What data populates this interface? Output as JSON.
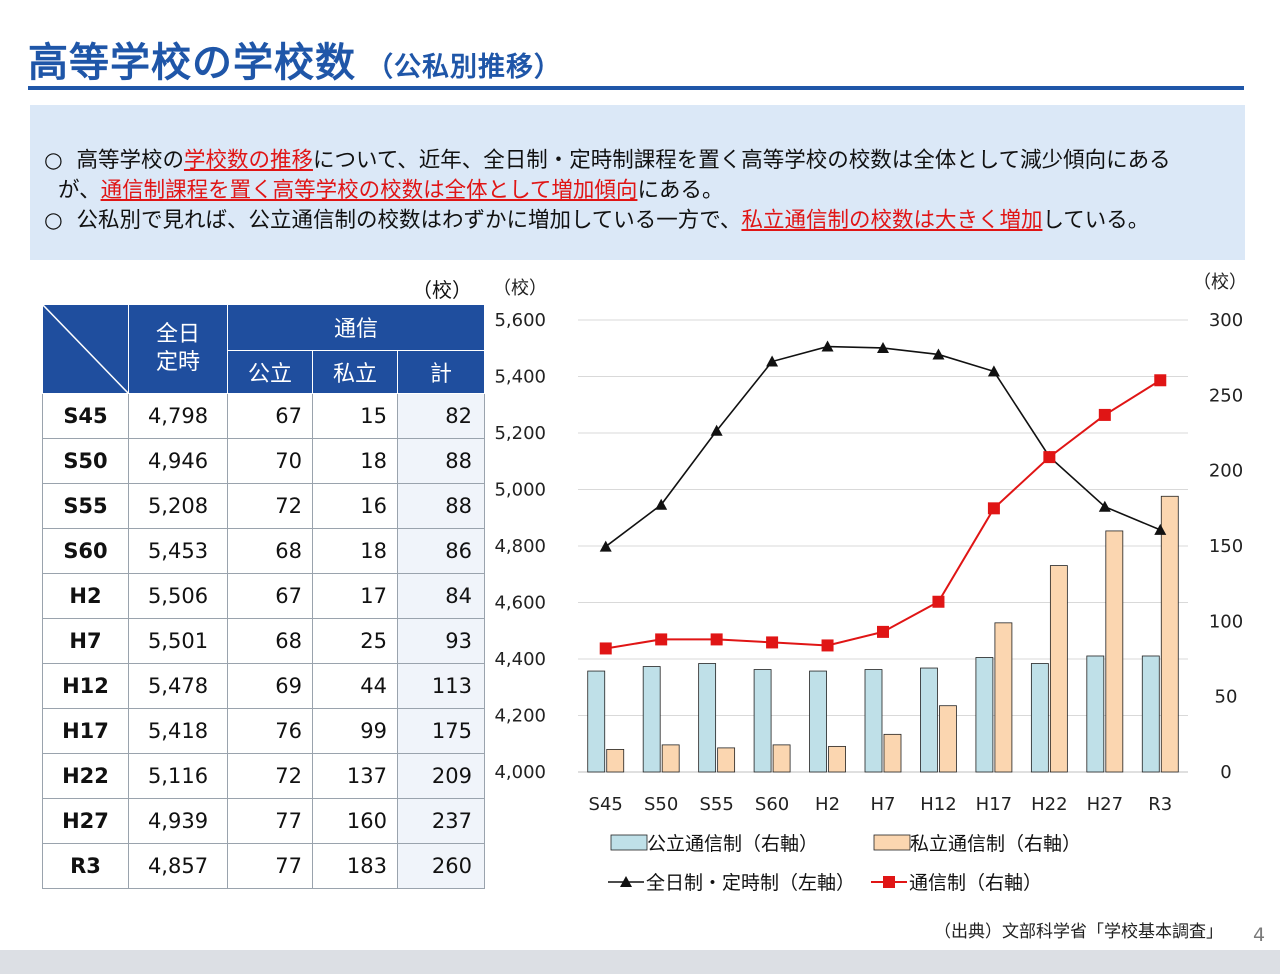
{
  "title": "高等学校の学校数",
  "title_sub": "（公私別推移）",
  "summary": {
    "bullet": "○",
    "l1_a": "高等学校の",
    "l1_red": "学校数の推移",
    "l1_b": "について、近年、全日制・定時制課程を置く高等学校の校数は全体として減少傾向にある",
    "l2_a": "が、",
    "l2_red": "通信制課程を置く高等学校の校数は全体として増加傾向",
    "l2_b": "にある。",
    "l3_a": "公私別で見れば、公立通信制の校数はわずかに増加している一方で、",
    "l3_red": "私立通信制の校数は大きく増加",
    "l3_b": "している。"
  },
  "table": {
    "unit": "（校）",
    "header_day_1": "全日",
    "header_day_2": "定時",
    "header_corr": "通信",
    "header_public": "公立",
    "header_private": "私立",
    "header_total": "計",
    "rows": [
      {
        "era": "S45",
        "day": "4,798",
        "pub": "67",
        "pri": "15",
        "tot": "82"
      },
      {
        "era": "S50",
        "day": "4,946",
        "pub": "70",
        "pri": "18",
        "tot": "88"
      },
      {
        "era": "S55",
        "day": "5,208",
        "pub": "72",
        "pri": "16",
        "tot": "88"
      },
      {
        "era": "S60",
        "day": "5,453",
        "pub": "68",
        "pri": "18",
        "tot": "86"
      },
      {
        "era": "H2",
        "day": "5,506",
        "pub": "67",
        "pri": "17",
        "tot": "84"
      },
      {
        "era": "H7",
        "day": "5,501",
        "pub": "68",
        "pri": "25",
        "tot": "93"
      },
      {
        "era": "H12",
        "day": "5,478",
        "pub": "69",
        "pri": "44",
        "tot": "113"
      },
      {
        "era": "H17",
        "day": "5,418",
        "pub": "76",
        "pri": "99",
        "tot": "175"
      },
      {
        "era": "H22",
        "day": "5,116",
        "pub": "72",
        "pri": "137",
        "tot": "209"
      },
      {
        "era": "H27",
        "day": "4,939",
        "pub": "77",
        "pri": "160",
        "tot": "237"
      },
      {
        "era": "R3",
        "day": "4,857",
        "pub": "77",
        "pri": "183",
        "tot": "260"
      }
    ],
    "highlight_color": "#e01515"
  },
  "source": "（出典）文部科学省「学校基本調査」",
  "page_number": "4",
  "colors": {
    "title": "#1f56a8",
    "table_header": "#1f4e9e",
    "summary_bg": "#dbe8f7",
    "public_bar": "#bfe0e8",
    "private_bar": "#fbd6b0",
    "correspondence_line": "#e01515",
    "fulltime_line": "#111111"
  },
  "chart_data": {
    "type": "bar",
    "categories": [
      "S45",
      "S50",
      "S55",
      "S60",
      "H2",
      "H7",
      "H12",
      "H17",
      "H22",
      "H27",
      "R3"
    ],
    "left_unit": "（校）",
    "right_unit": "（校）",
    "y_left": {
      "min": 4000,
      "max": 5600,
      "ticks": [
        "4,000",
        "4,200",
        "4,400",
        "4,600",
        "4,800",
        "5,000",
        "5,200",
        "5,400",
        "5,600"
      ]
    },
    "y_right": {
      "min": 0,
      "max": 300,
      "ticks": [
        "0",
        "50",
        "100",
        "150",
        "200",
        "250",
        "300"
      ]
    },
    "grid": true,
    "series": [
      {
        "name": "公立通信制（右軸）",
        "type": "bar",
        "axis": "right",
        "color": "#bfe0e8",
        "values": [
          67,
          70,
          72,
          68,
          67,
          68,
          69,
          76,
          72,
          77,
          77
        ]
      },
      {
        "name": "私立通信制（右軸）",
        "type": "bar",
        "axis": "right",
        "color": "#fbd6b0",
        "values": [
          15,
          18,
          16,
          18,
          17,
          25,
          44,
          99,
          137,
          160,
          183
        ]
      },
      {
        "name": "全日制・定時制（左軸）",
        "type": "line",
        "axis": "left",
        "color": "#111111",
        "marker": "triangle",
        "values": [
          4798,
          4946,
          5208,
          5453,
          5506,
          5501,
          5478,
          5418,
          5116,
          4939,
          4857
        ]
      },
      {
        "name": "通信制（右軸）",
        "type": "line",
        "axis": "right",
        "color": "#e01515",
        "marker": "square",
        "values": [
          82,
          88,
          88,
          86,
          84,
          93,
          113,
          175,
          209,
          237,
          260
        ]
      }
    ],
    "legend_position": "bottom"
  }
}
